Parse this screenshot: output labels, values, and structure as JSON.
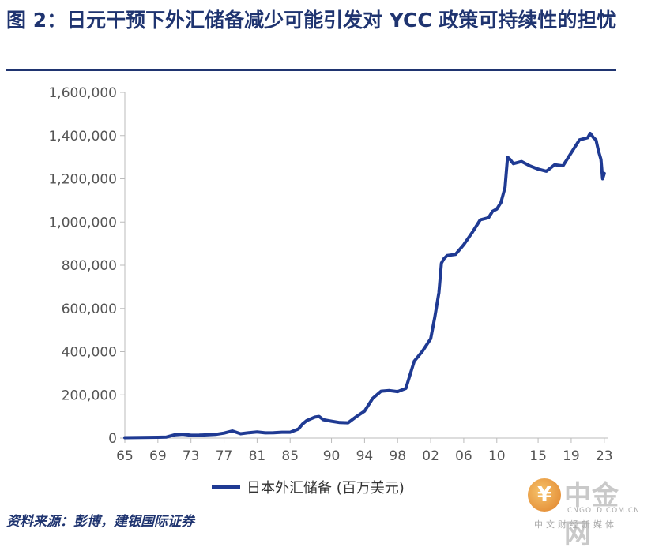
{
  "title": "图 2：日元干预下外汇储备减少可能引发对 YCC 政策可持续性的担忧",
  "source": "资料来源：彭博，建银国际证券",
  "logo": {
    "brand": "中金网",
    "domain": "CNGOLD.COM.CN",
    "tagline": "中文财经新媒体",
    "mark_symbol": "¥"
  },
  "colors": {
    "series": "#1f3a93",
    "title": "#1f3470"
  },
  "chart_data": {
    "type": "line",
    "title": "图 2：日元干预下外汇储备减少可能引发对 YCC 政策可持续性的担忧",
    "xlabel": "",
    "ylabel": "",
    "ylim": [
      0,
      1600000
    ],
    "yticks": [
      0,
      200000,
      400000,
      600000,
      800000,
      1000000,
      1200000,
      1400000,
      1600000
    ],
    "ytick_labels": [
      "0",
      "200,000",
      "400,000",
      "600,000",
      "800,000",
      "1,000,000",
      "1,200,000",
      "1,400,000",
      "1,600,000"
    ],
    "xlim": [
      1965,
      2023.5
    ],
    "xticks": [
      1965,
      1969,
      1973,
      1977,
      1981,
      1985,
      1990,
      1994,
      1998,
      2002,
      2006,
      2010,
      2015,
      2019,
      2023
    ],
    "xtick_labels": [
      "65",
      "69",
      "73",
      "77",
      "81",
      "85",
      "90",
      "94",
      "98",
      "02",
      "06",
      "10",
      "15",
      "19",
      "23"
    ],
    "grid": "none",
    "legend_position": "bottom",
    "series": [
      {
        "name": "日本外汇储备 (百万美元)",
        "x": [
          1965,
          1967,
          1969,
          1970,
          1971,
          1972,
          1973,
          1974,
          1976,
          1977,
          1978,
          1979,
          1980,
          1981,
          1982,
          1983,
          1984,
          1985,
          1986,
          1986.5,
          1987,
          1988,
          1988.5,
          1989,
          1990,
          1991,
          1992,
          1993,
          1994,
          1995,
          1996,
          1997,
          1998,
          1999,
          2000,
          2001,
          2002,
          2002.5,
          2003,
          2003.3,
          2003.6,
          2004,
          2005,
          2006,
          2007,
          2008,
          2009,
          2009.5,
          2010,
          2010.5,
          2011,
          2011.3,
          2011.6,
          2012,
          2013,
          2014,
          2015,
          2016,
          2016.5,
          2017,
          2018,
          2019,
          2020,
          2021,
          2021.3,
          2021.7,
          2022,
          2022.3,
          2022.6,
          2022.8,
          2023
        ],
        "y": [
          2000,
          2500,
          3500,
          4500,
          15000,
          18000,
          13000,
          13500,
          17000,
          23000,
          33000,
          20000,
          25000,
          28000,
          24000,
          25000,
          27000,
          27000,
          42000,
          65000,
          81000,
          97000,
          100000,
          85000,
          78000,
          72000,
          71000,
          99000,
          125000,
          184000,
          217000,
          220000,
          215000,
          230000,
          355000,
          402000,
          460000,
          560000,
          673000,
          810000,
          830000,
          845000,
          850000,
          895000,
          950000,
          1010000,
          1020000,
          1050000,
          1060000,
          1090000,
          1160000,
          1300000,
          1290000,
          1270000,
          1280000,
          1260000,
          1245000,
          1235000,
          1250000,
          1265000,
          1260000,
          1320000,
          1380000,
          1390000,
          1410000,
          1390000,
          1380000,
          1330000,
          1290000,
          1200000,
          1225000
        ]
      }
    ]
  }
}
